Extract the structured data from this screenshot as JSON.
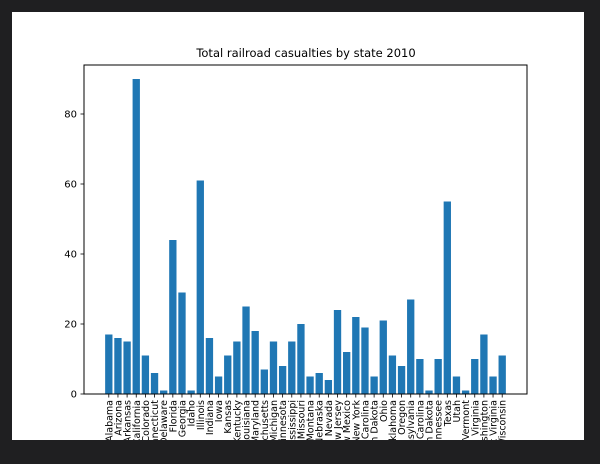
{
  "window": {
    "background": "#1f1f21",
    "figure_background": "#ffffff"
  },
  "chart_data": {
    "type": "bar",
    "title": "Total railroad casualties by state 2010",
    "xlabel": "",
    "ylabel": "",
    "ylim": [
      0,
      94
    ],
    "yticks": [
      0,
      20,
      40,
      60,
      80
    ],
    "grid": false,
    "bar_color": "#1f77b4",
    "categories": [
      "Alabama",
      "Arizona",
      "Arkansas",
      "California",
      "Colorado",
      "Connecticut",
      "Delaware",
      "Florida",
      "Georgia",
      "Idaho",
      "Illinois",
      "Indiana",
      "Iowa",
      "Kansas",
      "Kentucky",
      "Louisiana",
      "Maryland",
      "Massachusetts",
      "Michigan",
      "Minnesota",
      "Mississippi",
      "Missouri",
      "Montana",
      "Nebraska",
      "Nevada",
      "New Jersey",
      "New Mexico",
      "New York",
      "North Carolina",
      "North Dakota",
      "Ohio",
      "Oklahoma",
      "Oregon",
      "Pennsylvania",
      "South Carolina",
      "South Dakota",
      "Tennessee",
      "Texas",
      "Utah",
      "Vermont",
      "Virginia",
      "Washington",
      "West Virginia",
      "Wisconsin"
    ],
    "values": [
      17,
      16,
      15,
      90,
      11,
      6,
      1,
      44,
      29,
      1,
      61,
      16,
      5,
      11,
      15,
      25,
      18,
      7,
      15,
      8,
      15,
      20,
      5,
      6,
      4,
      24,
      12,
      22,
      19,
      5,
      21,
      11,
      8,
      27,
      10,
      1,
      10,
      55,
      5,
      1,
      10,
      17,
      5,
      11
    ]
  }
}
